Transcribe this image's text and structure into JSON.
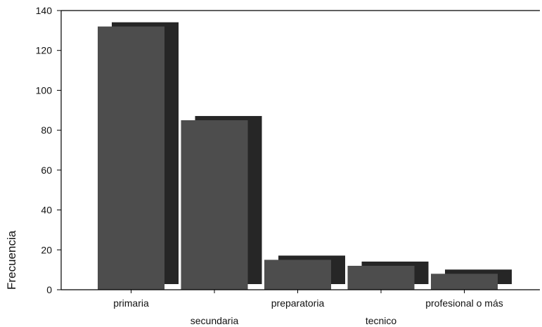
{
  "chart_data": {
    "type": "bar",
    "categories": [
      "primaria",
      "secundaria",
      "preparatoria",
      "tecnico",
      "profesional o más"
    ],
    "values": [
      132,
      85,
      15,
      12,
      8
    ],
    "title": "",
    "xlabel": "",
    "ylabel": "Frecuencia",
    "ylim": [
      0,
      140
    ],
    "yticks": [
      0,
      20,
      40,
      60,
      80,
      100,
      120,
      140
    ],
    "grid": false,
    "bar_style": "3d-shadow",
    "colors": {
      "bar_front": "#4d4d4d",
      "bar_back": "#262626",
      "axis": "#000000",
      "background": "#ffffff"
    }
  }
}
